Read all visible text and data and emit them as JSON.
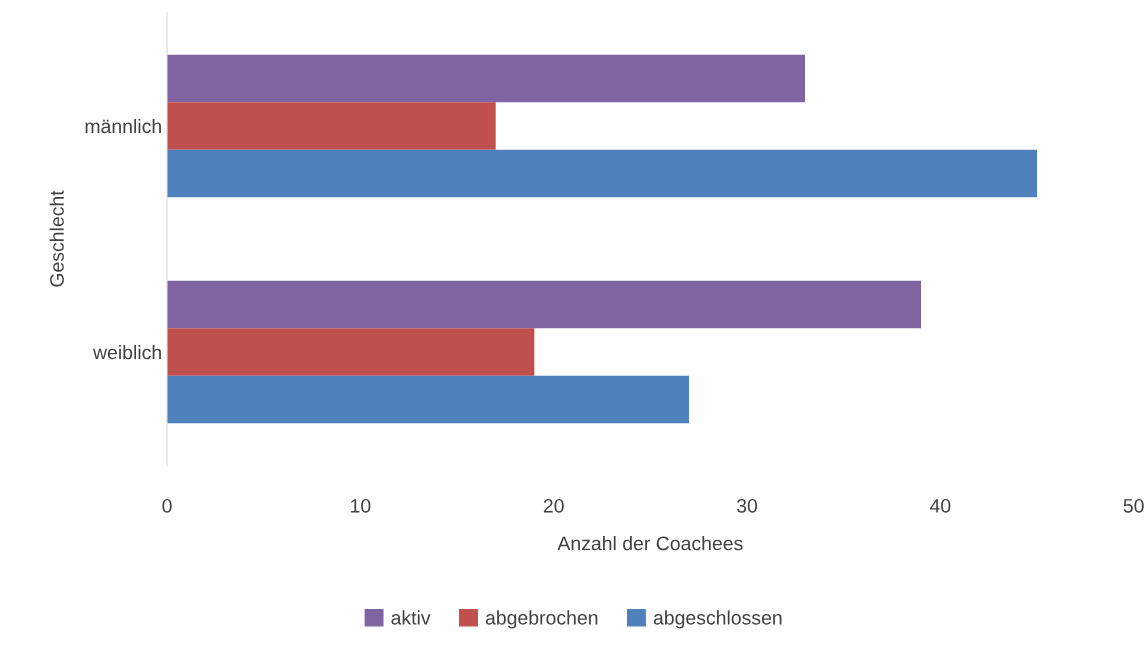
{
  "chart_data": {
    "type": "bar",
    "orientation": "horizontal",
    "xlabel": "Anzahl der Coachees",
    "ylabel": "Geschlecht",
    "categories": [
      "männlich",
      "weiblich"
    ],
    "series": [
      {
        "name": "aktiv",
        "color": "#8064a2",
        "values": [
          33,
          39
        ]
      },
      {
        "name": "abgebrochen",
        "color": "#c0504d",
        "values": [
          17,
          19
        ]
      },
      {
        "name": "abgeschlossen",
        "color": "#4f81bd",
        "values": [
          45,
          27
        ]
      }
    ],
    "xlim": [
      0,
      50
    ],
    "xticks": [
      0,
      10,
      20,
      30,
      40,
      50
    ],
    "grid": false,
    "legend": "bottom"
  }
}
